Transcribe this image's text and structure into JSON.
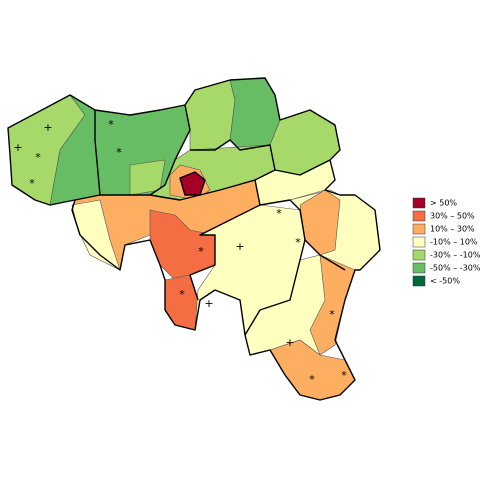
{
  "legend": [
    {
      "label": "> 50%",
      "color": "#a50026"
    },
    {
      "label": "30%  –  50%",
      "color": "#f46d43"
    },
    {
      "label": "10%  –  30%",
      "color": "#fdae61"
    },
    {
      "label": "-10%  –  10%",
      "color": "#ffffbf"
    },
    {
      "label": "-30%  –  -10%",
      "color": "#a6d96a"
    },
    {
      "label": "-50%  –  -30%",
      "color": "#66bd63"
    },
    {
      "label": "< -50%",
      "color": "#006837"
    }
  ],
  "markers": [
    "+",
    "+",
    "*",
    "*",
    "*",
    "*",
    "+",
    "+",
    "+",
    "*",
    "*",
    "*",
    "*",
    "*",
    "*",
    "*"
  ]
}
